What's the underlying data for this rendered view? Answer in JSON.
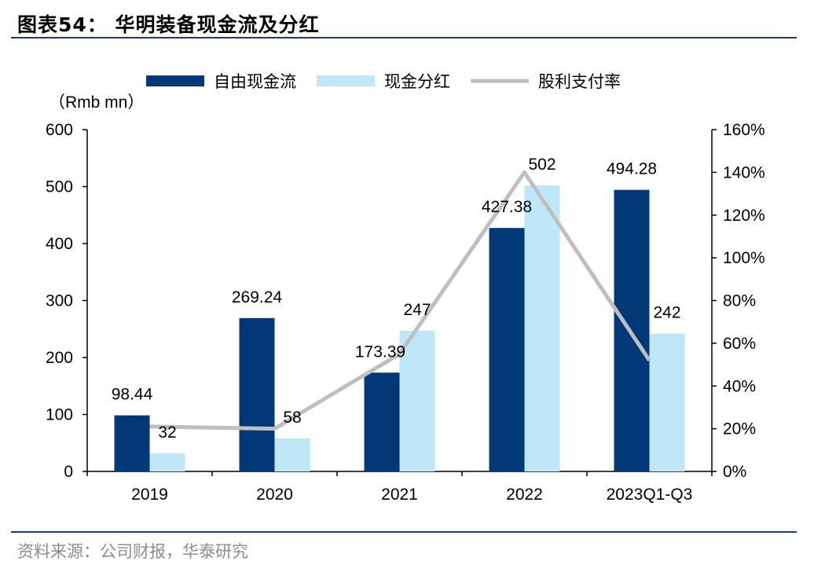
{
  "page": {
    "title": "图表54：  华明装备现金流及分红",
    "source": "资料来源：公司财报，华泰研究"
  },
  "chart_data": {
    "type": "bar",
    "categories": [
      "2019",
      "2020",
      "2021",
      "2022",
      "2023Q1-Q3"
    ],
    "unit_label": "（Rmb mn）",
    "ylim": [
      0,
      600
    ],
    "y_ticks": [
      0,
      100,
      200,
      300,
      400,
      500,
      600
    ],
    "y2lim": [
      0,
      1.6
    ],
    "y2_ticks": [
      "0%",
      "20%",
      "40%",
      "60%",
      "80%",
      "100%",
      "120%",
      "140%",
      "160%"
    ],
    "legend_position": "top",
    "series": [
      {
        "name": "自由现金流",
        "kind": "bar",
        "axis": "left",
        "color": "#003878",
        "values": [
          98.44,
          269.24,
          173.39,
          427.38,
          494.28
        ],
        "labels": [
          "98.44",
          "269.24",
          "173.39",
          "427.38",
          "494.28"
        ]
      },
      {
        "name": "现金分红",
        "kind": "bar",
        "axis": "left",
        "color": "#bfe7f8",
        "values": [
          32,
          58,
          247,
          502,
          242
        ],
        "labels": [
          "32",
          "58",
          "247",
          "502",
          "242"
        ]
      },
      {
        "name": "股利支付率",
        "kind": "line",
        "axis": "right",
        "color": "#bfbfbf",
        "values": [
          0.21,
          0.2,
          0.55,
          1.4,
          0.52
        ]
      }
    ]
  }
}
